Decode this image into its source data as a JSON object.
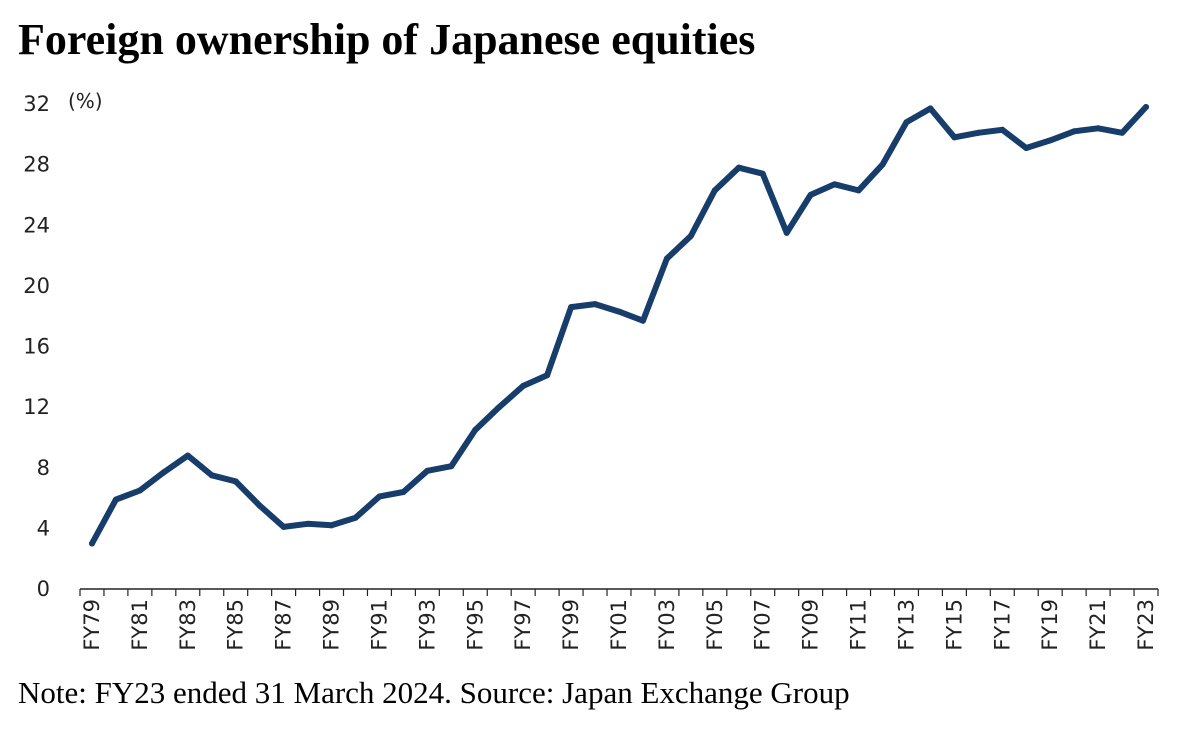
{
  "title": "Foreign ownership of Japanese equities",
  "note": "Note: FY23 ended 31 March 2024. Source: Japan Exchange Group",
  "colors": {
    "series": "#173d6b",
    "axis": "#222222",
    "text": "#000000"
  },
  "chart_data": {
    "type": "line",
    "title": "Foreign ownership of Japanese equities",
    "ylabel": "(%)",
    "xlabel": "",
    "ylim": [
      0,
      32
    ],
    "yticks": [
      0,
      4,
      8,
      12,
      16,
      20,
      24,
      28,
      32
    ],
    "grid": false,
    "legend": "none",
    "x": [
      "FY79",
      "FY80",
      "FY81",
      "FY82",
      "FY83",
      "FY84",
      "FY85",
      "FY86",
      "FY87",
      "FY88",
      "FY89",
      "FY90",
      "FY91",
      "FY92",
      "FY93",
      "FY94",
      "FY95",
      "FY96",
      "FY97",
      "FY98",
      "FY99",
      "FY00",
      "FY01",
      "FY02",
      "FY03",
      "FY04",
      "FY05",
      "FY06",
      "FY07",
      "FY08",
      "FY09",
      "FY10",
      "FY11",
      "FY12",
      "FY13",
      "FY14",
      "FY15",
      "FY16",
      "FY17",
      "FY18",
      "FY19",
      "FY20",
      "FY21",
      "FY22",
      "FY23"
    ],
    "x_tick_labels": [
      "FY79",
      "FY81",
      "FY83",
      "FY85",
      "FY87",
      "FY89",
      "FY91",
      "FY93",
      "FY95",
      "FY97",
      "FY99",
      "FY01",
      "FY03",
      "FY05",
      "FY07",
      "FY09",
      "FY11",
      "FY13",
      "FY15",
      "FY17",
      "FY19",
      "FY21",
      "FY23"
    ],
    "series": [
      {
        "values": [
          3.0,
          5.9,
          6.5,
          7.7,
          8.8,
          7.5,
          7.1,
          5.5,
          4.1,
          4.3,
          4.2,
          4.7,
          6.1,
          6.4,
          7.8,
          8.1,
          10.5,
          12.0,
          13.4,
          14.1,
          18.6,
          18.8,
          18.3,
          17.7,
          21.8,
          23.3,
          26.3,
          27.8,
          27.4,
          23.5,
          26.0,
          26.7,
          26.3,
          28.0,
          30.8,
          31.7,
          29.8,
          30.1,
          30.3,
          29.1,
          29.6,
          30.2,
          30.4,
          30.1,
          31.8
        ]
      }
    ]
  }
}
